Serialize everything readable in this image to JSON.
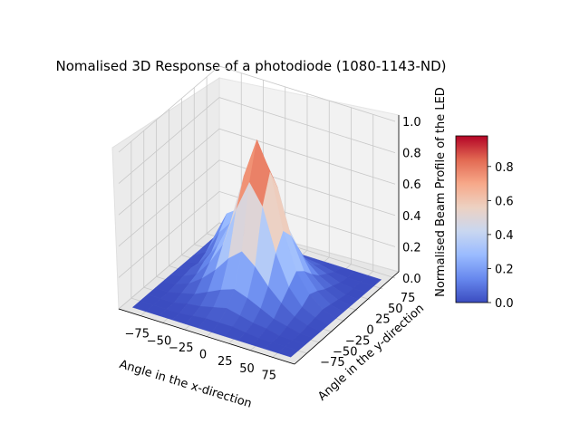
{
  "chart_data": {
    "type": "surface3d",
    "title": "Nomalised 3D Response of a photodiode (1080-1143-ND)",
    "xlabel": "Angle in the x-direction",
    "ylabel": "Angle in the y-direction",
    "zlabel": "Normalised Beam Profile of the LED",
    "x_ticks": [
      "−75",
      "−50",
      "−25",
      "0",
      "25",
      "50",
      "75"
    ],
    "y_ticks": [
      "−75",
      "−50",
      "−25",
      "0",
      "25",
      "50",
      "75"
    ],
    "z_ticks": [
      "0.0",
      "0.2",
      "0.4",
      "0.6",
      "0.8",
      "1.0"
    ],
    "xlim": [
      -100,
      100
    ],
    "ylim": [
      -100,
      100
    ],
    "zlim": [
      0,
      1
    ],
    "colormap": "coolwarm",
    "colorbar": {
      "ticks": [
        "0.0",
        "0.2",
        "0.4",
        "0.6",
        "0.8"
      ],
      "range": [
        0,
        0.98
      ],
      "colors": [
        "#3b4cc0",
        "#6788ee",
        "#9abbff",
        "#c9d7f0",
        "#edd1c2",
        "#f7a889",
        "#e26952",
        "#b40426"
      ]
    },
    "grid": true,
    "surface": {
      "x": [
        -90,
        -75,
        -60,
        -45,
        -30,
        -15,
        0,
        15,
        30,
        45,
        60,
        75,
        90
      ],
      "y": [
        -90,
        -75,
        -60,
        -45,
        -30,
        -15,
        0,
        15,
        30,
        45,
        60,
        75,
        90
      ],
      "z": [
        [
          0.0,
          0.0,
          0.0,
          0.0,
          0.0,
          0.0,
          0.0,
          0.0,
          0.0,
          0.0,
          0.0,
          0.0,
          0.0
        ],
        [
          0.0,
          0.0,
          0.0,
          0.0,
          0.01,
          0.02,
          0.02,
          0.02,
          0.01,
          0.0,
          0.0,
          0.0,
          0.0
        ],
        [
          0.0,
          0.0,
          0.0,
          0.02,
          0.03,
          0.05,
          0.07,
          0.05,
          0.03,
          0.02,
          0.0,
          0.0,
          0.0
        ],
        [
          0.0,
          0.0,
          0.02,
          0.04,
          0.08,
          0.12,
          0.15,
          0.12,
          0.08,
          0.04,
          0.02,
          0.0,
          0.0
        ],
        [
          0.0,
          0.01,
          0.04,
          0.1,
          0.18,
          0.28,
          0.35,
          0.28,
          0.18,
          0.1,
          0.04,
          0.01,
          0.0
        ],
        [
          0.0,
          0.02,
          0.06,
          0.16,
          0.3,
          0.55,
          0.75,
          0.62,
          0.35,
          0.16,
          0.06,
          0.02,
          0.0
        ],
        [
          0.0,
          0.03,
          0.1,
          0.22,
          0.4,
          0.72,
          0.98,
          0.8,
          0.45,
          0.22,
          0.1,
          0.03,
          0.0
        ],
        [
          0.0,
          0.02,
          0.12,
          0.25,
          0.36,
          0.6,
          0.82,
          0.66,
          0.38,
          0.18,
          0.08,
          0.02,
          0.0
        ],
        [
          0.0,
          0.05,
          0.2,
          0.3,
          0.32,
          0.42,
          0.5,
          0.4,
          0.26,
          0.12,
          0.05,
          0.01,
          0.0
        ],
        [
          0.0,
          0.1,
          0.28,
          0.34,
          0.3,
          0.26,
          0.25,
          0.2,
          0.14,
          0.07,
          0.03,
          0.0,
          0.0
        ],
        [
          0.0,
          0.08,
          0.22,
          0.25,
          0.2,
          0.15,
          0.12,
          0.1,
          0.07,
          0.04,
          0.01,
          0.0,
          0.0
        ],
        [
          0.0,
          0.04,
          0.1,
          0.12,
          0.1,
          0.07,
          0.05,
          0.04,
          0.03,
          0.01,
          0.0,
          0.0,
          0.0
        ],
        [
          0.0,
          0.0,
          0.0,
          0.0,
          0.0,
          0.0,
          0.0,
          0.0,
          0.0,
          0.0,
          0.0,
          0.0,
          0.0
        ]
      ]
    }
  }
}
